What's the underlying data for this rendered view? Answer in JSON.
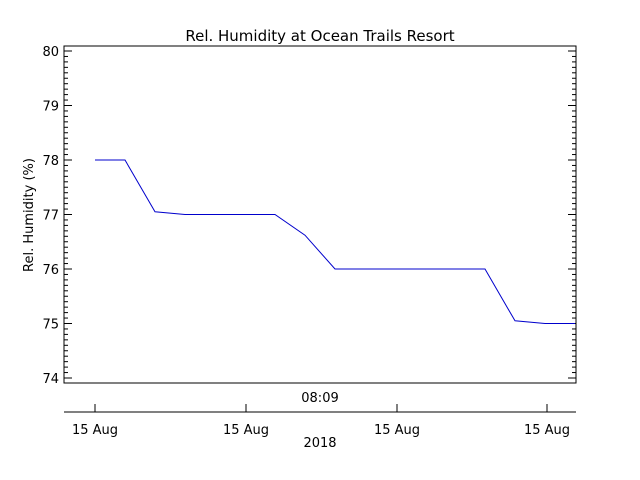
{
  "chart_data": {
    "type": "line",
    "title": "Rel. Humidity at Ocean Trails Resort",
    "ylabel": "Rel. Humidity (%)",
    "ylim": [
      74,
      80
    ],
    "yticks": [
      "74",
      "75",
      "76",
      "77",
      "78",
      "79",
      "80"
    ],
    "top_axis_label": "08:09",
    "bottom_axis_ticks": [
      "15 Aug",
      "15 Aug",
      "15 Aug",
      "15 Aug"
    ],
    "bottom_axis_label": "2018",
    "grid": false,
    "line_color": "#0000cc",
    "series": [
      {
        "x": [
          0,
          1,
          2,
          3,
          4,
          5,
          6,
          7,
          8,
          9,
          10,
          11,
          12,
          13,
          14,
          15,
          16
        ],
        "values": [
          78,
          78,
          77.05,
          77,
          77,
          77,
          77,
          76.62,
          76,
          76,
          76,
          76,
          76,
          76,
          75.05,
          75,
          75
        ]
      }
    ]
  }
}
